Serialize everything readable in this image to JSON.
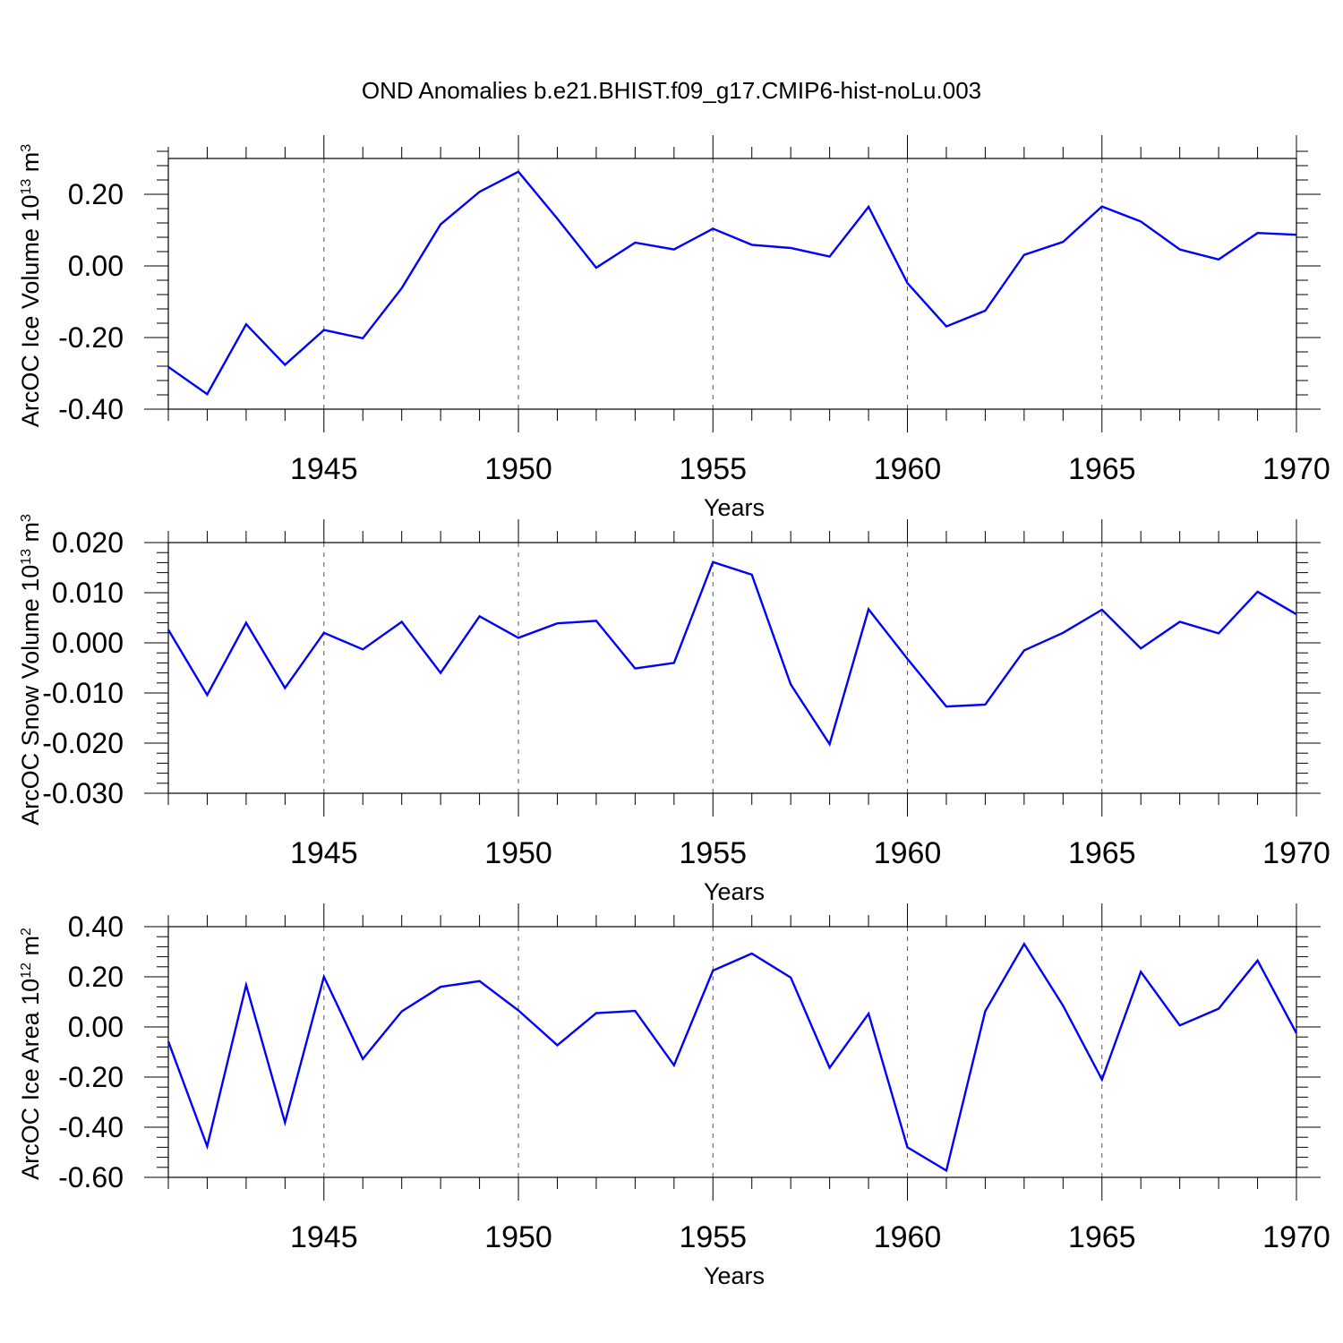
{
  "title": "OND Anomalies b.e21.BHIST.f09_g17.CMIP6-hist-noLu.003",
  "line_color": "#0000ff",
  "chart_data": [
    {
      "type": "line",
      "xlabel": "Years",
      "ylabel": {
        "main": "ArcOC Ice Volume 10",
        "exp": "13",
        "unit": " m",
        "unit_exp": "3"
      },
      "xlim": [
        1941,
        1970
      ],
      "ylim": [
        -0.4,
        0.3
      ],
      "yticks": [
        -0.4,
        -0.2,
        0.0,
        0.2
      ],
      "ytick_labels": [
        "-0.40",
        "-0.20",
        "0.00",
        "0.20"
      ],
      "xticks": [
        1945,
        1950,
        1955,
        1960,
        1965,
        1970
      ],
      "xtick_labels": [
        "1945",
        "1950",
        "1955",
        "1960",
        "1965",
        "1970"
      ],
      "grid": "dashed vertical at major x ticks",
      "x": [
        1941,
        1942,
        1943,
        1944,
        1945,
        1946,
        1947,
        1948,
        1949,
        1950,
        1951,
        1952,
        1953,
        1954,
        1955,
        1956,
        1957,
        1958,
        1959,
        1960,
        1961,
        1962,
        1963,
        1964,
        1965,
        1966,
        1967,
        1968,
        1969,
        1970
      ],
      "values": [
        -0.282,
        -0.358,
        -0.163,
        -0.276,
        -0.179,
        -0.202,
        -0.062,
        0.116,
        0.207,
        0.263,
        0.132,
        -0.005,
        0.065,
        0.046,
        0.104,
        0.059,
        0.05,
        0.026,
        0.165,
        -0.048,
        -0.169,
        -0.125,
        0.031,
        0.067,
        0.166,
        0.124,
        0.046,
        0.018,
        0.092,
        0.087
      ]
    },
    {
      "type": "line",
      "xlabel": "Years",
      "ylabel": {
        "main": "ArcOC Snow Volume 10",
        "exp": "13",
        "unit": " m",
        "unit_exp": "3"
      },
      "xlim": [
        1941,
        1970
      ],
      "ylim": [
        -0.03,
        0.02
      ],
      "yticks": [
        -0.03,
        -0.02,
        -0.01,
        0.0,
        0.01,
        0.02
      ],
      "ytick_labels": [
        "-0.030",
        "-0.020",
        "-0.010",
        "0.000",
        "0.010",
        "0.020"
      ],
      "xticks": [
        1945,
        1950,
        1955,
        1960,
        1965,
        1970
      ],
      "xtick_labels": [
        "1945",
        "1950",
        "1955",
        "1960",
        "1965",
        "1970"
      ],
      "grid": "dashed vertical at major x ticks",
      "x": [
        1941,
        1942,
        1943,
        1944,
        1945,
        1946,
        1947,
        1948,
        1949,
        1950,
        1951,
        1952,
        1953,
        1954,
        1955,
        1956,
        1957,
        1958,
        1959,
        1960,
        1961,
        1962,
        1963,
        1964,
        1965,
        1966,
        1967,
        1968,
        1969,
        1970
      ],
      "values": [
        0.0026,
        -0.0104,
        0.004,
        -0.009,
        0.002,
        -0.0013,
        0.0042,
        -0.006,
        0.0053,
        0.001,
        0.0039,
        0.0044,
        -0.0051,
        -0.004,
        0.0161,
        0.0136,
        -0.0083,
        -0.0202,
        0.0067,
        -0.0032,
        -0.0127,
        -0.0123,
        -0.0015,
        0.002,
        0.0066,
        -0.0011,
        0.0042,
        0.0019,
        0.0102,
        0.0057
      ]
    },
    {
      "type": "line",
      "xlabel": "Years",
      "ylabel": {
        "main": "ArcOC Ice Area 10",
        "exp": "12",
        "unit": " m",
        "unit_exp": "2"
      },
      "xlim": [
        1941,
        1970
      ],
      "ylim": [
        -0.6,
        0.4
      ],
      "yticks": [
        -0.6,
        -0.4,
        -0.2,
        0.0,
        0.2,
        0.4
      ],
      "ytick_labels": [
        "-0.60",
        "-0.40",
        "-0.20",
        "0.00",
        "0.20",
        "0.40"
      ],
      "xticks": [
        1945,
        1950,
        1955,
        1960,
        1965,
        1970
      ],
      "xtick_labels": [
        "1945",
        "1950",
        "1955",
        "1960",
        "1965",
        "1970"
      ],
      "grid": "dashed vertical at major x ticks",
      "x": [
        1941,
        1942,
        1943,
        1944,
        1945,
        1946,
        1947,
        1948,
        1949,
        1950,
        1951,
        1952,
        1953,
        1954,
        1955,
        1956,
        1957,
        1958,
        1959,
        1960,
        1961,
        1962,
        1963,
        1964,
        1965,
        1966,
        1967,
        1968,
        1969,
        1970
      ],
      "values": [
        -0.058,
        -0.476,
        0.167,
        -0.381,
        0.2,
        -0.128,
        0.062,
        0.16,
        0.183,
        0.066,
        -0.073,
        0.055,
        0.064,
        -0.153,
        0.225,
        0.293,
        0.197,
        -0.163,
        0.053,
        -0.48,
        -0.573,
        0.063,
        0.331,
        0.085,
        -0.21,
        0.22,
        0.006,
        0.073,
        0.265,
        -0.025
      ]
    }
  ]
}
